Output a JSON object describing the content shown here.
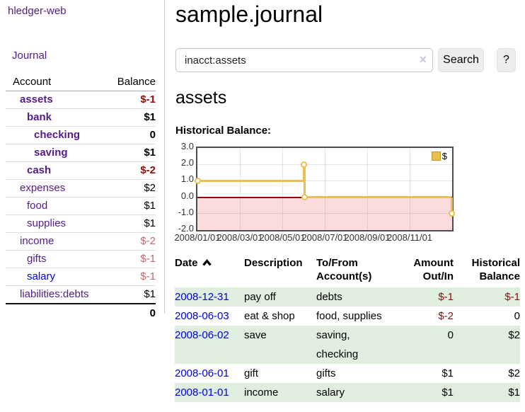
{
  "palette": {
    "link_purple": "#551a8b",
    "link_blue": "#0000e0",
    "negative_dark": "#8b0f0f",
    "negative_light": "#bf6a6a",
    "row_green": "#dfeedf",
    "series_gold": "#e9c04d",
    "chart_negative_bg": "#fbdbdb",
    "zero_line": "#990000"
  },
  "sidebar": {
    "brand": "hledger-web",
    "nav_journal": "Journal",
    "accounts_header": {
      "account": "Account",
      "balance": "Balance"
    },
    "accounts": [
      {
        "name": "assets",
        "balance": "$-1",
        "depth": 1,
        "bold": true,
        "link_color": "purple",
        "balance_style": "neg_dark"
      },
      {
        "name": "bank",
        "balance": "$1",
        "depth": 2,
        "bold": true,
        "link_color": "purple",
        "balance_style": "normal"
      },
      {
        "name": "checking",
        "balance": "0",
        "depth": 3,
        "bold": true,
        "link_color": "purple",
        "balance_style": "normal"
      },
      {
        "name": "saving",
        "balance": "$1",
        "depth": 3,
        "bold": true,
        "link_color": "purple",
        "balance_style": "normal"
      },
      {
        "name": "cash",
        "balance": "$-2",
        "depth": 2,
        "bold": true,
        "link_color": "purple",
        "balance_style": "neg_dark"
      },
      {
        "name": "expenses",
        "balance": "$2",
        "depth": 1,
        "bold": false,
        "link_color": "purple",
        "balance_style": "normal"
      },
      {
        "name": "food",
        "balance": "$1",
        "depth": 2,
        "bold": false,
        "link_color": "purple",
        "balance_style": "normal"
      },
      {
        "name": "supplies",
        "balance": "$1",
        "depth": 2,
        "bold": false,
        "link_color": "purple",
        "balance_style": "normal"
      },
      {
        "name": "income",
        "balance": "$-2",
        "depth": 1,
        "bold": false,
        "link_color": "purple",
        "balance_style": "neg_light"
      },
      {
        "name": "gifts",
        "balance": "$-1",
        "depth": 2,
        "bold": false,
        "link_color": "purple",
        "balance_style": "neg_light"
      },
      {
        "name": "salary",
        "balance": "$-1",
        "depth": 2,
        "bold": false,
        "link_color": "blue",
        "balance_style": "neg_light"
      },
      {
        "name": "liabilities:debts",
        "balance": "$1",
        "depth": 1,
        "bold": false,
        "link_color": "purple",
        "balance_style": "normal"
      }
    ],
    "total": "0"
  },
  "main": {
    "title": "sample.journal",
    "search": {
      "value": "inacct:assets",
      "clear_icon": "×",
      "search_button": "Search",
      "help_button": "?"
    },
    "account_heading": "assets",
    "chart_label": "Historical Balance:",
    "table": {
      "headers": [
        {
          "label": "Date",
          "align": "left",
          "sorted": true
        },
        {
          "label": "Description",
          "align": "left"
        },
        {
          "label": "To/From\nAccount(s)",
          "align": "left"
        },
        {
          "label": "Amount\nOut/In",
          "align": "right"
        },
        {
          "label": "Historical\nBalance",
          "align": "right"
        }
      ],
      "rows": [
        {
          "date": "2008-12-31",
          "description": "pay off",
          "tofrom": "debts",
          "amount": "$-1",
          "balance": "$-1"
        },
        {
          "date": "2008-06-03",
          "description": "eat & shop",
          "tofrom": "food, supplies",
          "amount": "$-2",
          "balance": "0"
        },
        {
          "date": "2008-06-02",
          "description": "save",
          "tofrom": "saving,\nchecking",
          "amount": "0",
          "balance": "$2"
        },
        {
          "date": "2008-06-01",
          "description": "gift",
          "tofrom": "gifts",
          "amount": "$1",
          "balance": "$2"
        },
        {
          "date": "2008-01-01",
          "description": "income",
          "tofrom": "salary",
          "amount": "$1",
          "balance": "$1"
        }
      ]
    }
  },
  "chart_data": {
    "type": "line",
    "step": true,
    "title": "Historical Balance:",
    "points": [
      {
        "x": "2008-01-01",
        "y": 1
      },
      {
        "x": "2008-06-01",
        "y": 2
      },
      {
        "x": "2008-06-03",
        "y": 0
      },
      {
        "x": "2008-12-31",
        "y": -1
      }
    ],
    "ylim": [
      -2,
      3
    ],
    "yticks": [
      3.0,
      2.0,
      1.0,
      0.0,
      -1.0,
      -2.0
    ],
    "xtick_labels": [
      "2008/01/01",
      "2008/03/01",
      "2008/05/01",
      "2008/07/01",
      "2008/09/01",
      "2008/11/01"
    ],
    "legend": [
      {
        "label": "$",
        "color": "#e9c04d"
      }
    ],
    "legend_position": "top-right",
    "grid": true,
    "negative_region_shaded": true
  }
}
